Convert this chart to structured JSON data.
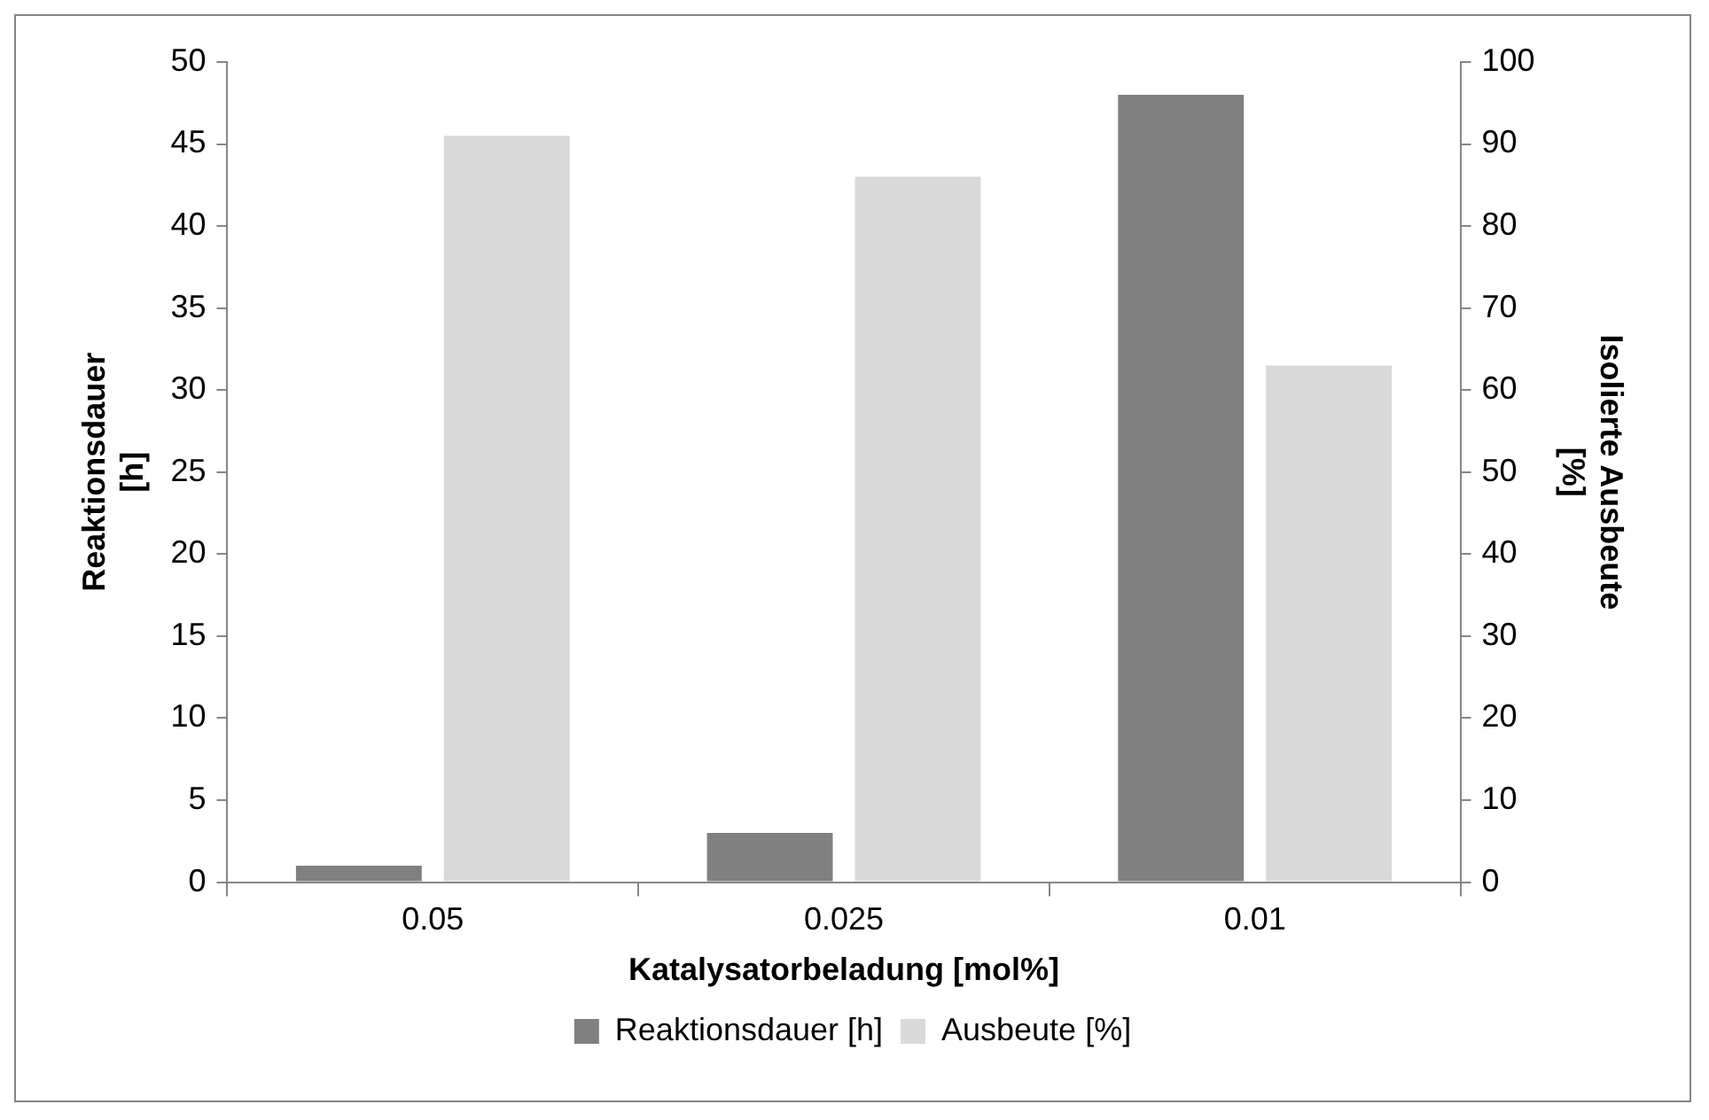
{
  "chart_data": {
    "type": "bar",
    "xlabel": "Katalysatorbeladung [mol%]",
    "ylabel": "Reaktionsdauer [h]",
    "y2label": "Isolierte Ausbeute [%]",
    "categories": [
      "0.05",
      "0.025",
      "0.01"
    ],
    "series": [
      {
        "name": "Reaktionsdauer [h]",
        "color": "#808080",
        "values": [
          1,
          3,
          48
        ]
      },
      {
        "name": "Ausbeute [%]",
        "color": "#d9d9d9",
        "values": [
          91,
          86,
          63
        ],
        "axis": "y2"
      }
    ],
    "ylim": [
      0,
      50
    ],
    "yticks": [
      0,
      5,
      10,
      15,
      20,
      25,
      30,
      35,
      40,
      45,
      50
    ],
    "y2lim": [
      0,
      100
    ],
    "y2ticks": [
      0,
      10,
      20,
      30,
      40,
      50,
      60,
      70,
      80,
      90,
      100
    ],
    "grid": false,
    "legend": "bottom"
  }
}
